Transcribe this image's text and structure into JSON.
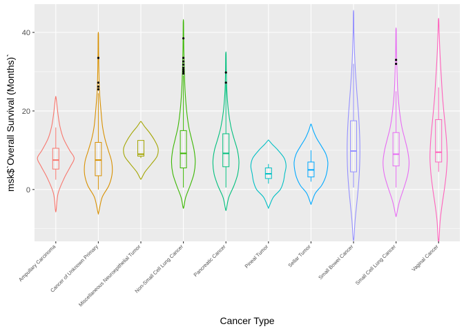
{
  "chart_data": {
    "type": "violin",
    "title": "",
    "xlabel": "Cancer Type",
    "ylabel": "msk$`Overall Survival (Months)`",
    "ylim": [
      -13.2,
      47.2
    ],
    "yticks": [
      0,
      20,
      40
    ],
    "grid": true,
    "legend": "none",
    "series": [
      {
        "name": "Ampullary Carcinoma",
        "color": "#F8766D",
        "violin_range": [
          -5.2,
          23.2
        ],
        "density": [
          [
            -5.2,
            0.02
          ],
          [
            -1,
            0.12
          ],
          [
            3,
            0.45
          ],
          [
            6,
            0.78
          ],
          [
            8,
            0.96
          ],
          [
            10,
            0.72
          ],
          [
            13,
            0.4
          ],
          [
            16,
            0.22
          ],
          [
            19,
            0.12
          ],
          [
            23.2,
            0.02
          ]
        ],
        "box": {
          "q1": 5.2,
          "median": 7.5,
          "q3": 10.5,
          "whisker_low": 2.5,
          "whisker_high": 15.8
        },
        "outliers": []
      },
      {
        "name": "Cancer of Unknown Primary",
        "color": "#D89000",
        "violin_range": [
          -5.8,
          39.5
        ],
        "density": [
          [
            -5.8,
            0.02
          ],
          [
            -2,
            0.2
          ],
          [
            1,
            0.55
          ],
          [
            4,
            0.72
          ],
          [
            7,
            0.7
          ],
          [
            10,
            0.52
          ],
          [
            13,
            0.34
          ],
          [
            16,
            0.22
          ],
          [
            20,
            0.14
          ],
          [
            25,
            0.06
          ],
          [
            30,
            0.03
          ],
          [
            35,
            0.015
          ],
          [
            39.5,
            0.01
          ]
        ],
        "box": {
          "q1": 3.5,
          "median": 7.5,
          "q3": 12.0,
          "whisker_low": 0.0,
          "whisker_high": 24.5
        },
        "outliers": [
          25.5,
          26.2,
          27.2,
          33.5
        ]
      },
      {
        "name": "Miscellaneous Neuroepithelial Tumor",
        "color": "#A3A500",
        "violin_range": [
          2.8,
          17.2
        ],
        "density": [
          [
            2.8,
            0.03
          ],
          [
            4.5,
            0.22
          ],
          [
            6.5,
            0.55
          ],
          [
            8.5,
            0.85
          ],
          [
            10.5,
            0.9
          ],
          [
            12.5,
            0.72
          ],
          [
            14.5,
            0.45
          ],
          [
            16,
            0.2
          ],
          [
            17.2,
            0.03
          ]
        ],
        "box": {
          "q1": 8.5,
          "median": 9.0,
          "q3": 12.5,
          "whisker_low": 8.0,
          "whisker_high": 12.5
        },
        "outliers": []
      },
      {
        "name": "Non-Small Cell Lung Cancer",
        "color": "#39B600",
        "violin_range": [
          -4.5,
          42.5
        ],
        "density": [
          [
            -4.5,
            0.02
          ],
          [
            -2,
            0.12
          ],
          [
            1,
            0.35
          ],
          [
            4,
            0.55
          ],
          [
            7,
            0.62
          ],
          [
            10,
            0.56
          ],
          [
            13,
            0.42
          ],
          [
            16,
            0.28
          ],
          [
            20,
            0.17
          ],
          [
            25,
            0.09
          ],
          [
            30,
            0.05
          ],
          [
            36,
            0.02
          ],
          [
            42.5,
            0.01
          ]
        ],
        "box": {
          "q1": 5.5,
          "median": 9.2,
          "q3": 15.0,
          "whisker_low": 0.5,
          "whisker_high": 29.0
        },
        "outliers": [
          29.5,
          30.0,
          30.5,
          31.0,
          31.8,
          32.6,
          33.5,
          38.5
        ]
      },
      {
        "name": "Pancreatic Cancer",
        "color": "#00BF7D",
        "violin_range": [
          -5.0,
          34.5
        ],
        "density": [
          [
            -5,
            0.02
          ],
          [
            -2,
            0.15
          ],
          [
            1,
            0.42
          ],
          [
            4,
            0.62
          ],
          [
            7,
            0.68
          ],
          [
            10,
            0.6
          ],
          [
            13,
            0.42
          ],
          [
            16,
            0.26
          ],
          [
            20,
            0.13
          ],
          [
            25,
            0.05
          ],
          [
            30,
            0.02
          ],
          [
            34.5,
            0.01
          ]
        ],
        "box": {
          "q1": 5.8,
          "median": 9.2,
          "q3": 14.2,
          "whisker_low": 0.5,
          "whisker_high": 26.8
        },
        "outliers": [
          27.2,
          29.8
        ]
      },
      {
        "name": "Pineal Tumor",
        "color": "#00BFC4",
        "violin_range": [
          -4.5,
          12.5
        ],
        "density": [
          [
            -4.5,
            0.02
          ],
          [
            -2,
            0.25
          ],
          [
            0,
            0.62
          ],
          [
            2,
            0.78
          ],
          [
            4,
            0.85
          ],
          [
            6,
            0.92
          ],
          [
            8,
            0.82
          ],
          [
            10,
            0.5
          ],
          [
            11.5,
            0.2
          ],
          [
            12.5,
            0.02
          ]
        ],
        "box": {
          "q1": 2.8,
          "median": 4.0,
          "q3": 5.5,
          "whisker_low": 1.5,
          "whisker_high": 6.5
        },
        "outliers": []
      },
      {
        "name": "Sellar Tumor",
        "color": "#00A9FF",
        "violin_range": [
          -3.5,
          16.5
        ],
        "density": [
          [
            -3.5,
            0.02
          ],
          [
            -1,
            0.22
          ],
          [
            1,
            0.55
          ],
          [
            3,
            0.75
          ],
          [
            5,
            0.85
          ],
          [
            7,
            0.88
          ],
          [
            9,
            0.78
          ],
          [
            11,
            0.55
          ],
          [
            13,
            0.3
          ],
          [
            15,
            0.12
          ],
          [
            16.5,
            0.02
          ]
        ],
        "box": {
          "q1": 3.2,
          "median": 5.0,
          "q3": 7.0,
          "whisker_low": 2.0,
          "whisker_high": 10.0
        },
        "outliers": []
      },
      {
        "name": "Small Bowel Cancer",
        "color": "#9590FF",
        "violin_range": [
          -12.5,
          45.0
        ],
        "density": [
          [
            -12.5,
            0.02
          ],
          [
            -8,
            0.08
          ],
          [
            -4,
            0.16
          ],
          [
            0,
            0.24
          ],
          [
            4,
            0.3
          ],
          [
            8,
            0.33
          ],
          [
            12,
            0.33
          ],
          [
            16,
            0.3
          ],
          [
            20,
            0.25
          ],
          [
            25,
            0.17
          ],
          [
            30,
            0.1
          ],
          [
            35,
            0.05
          ],
          [
            40,
            0.02
          ],
          [
            45,
            0.01
          ]
        ],
        "box": {
          "q1": 4.5,
          "median": 9.8,
          "q3": 17.5,
          "whisker_low": 0.5,
          "whisker_high": 32.0
        },
        "outliers": []
      },
      {
        "name": "Small Cell Lung Cancer",
        "color": "#E76BF3",
        "violin_range": [
          -6.5,
          40.5
        ],
        "density": [
          [
            -6.5,
            0.02
          ],
          [
            -3,
            0.18
          ],
          [
            1,
            0.45
          ],
          [
            4,
            0.62
          ],
          [
            7,
            0.68
          ],
          [
            10,
            0.6
          ],
          [
            13,
            0.45
          ],
          [
            16,
            0.3
          ],
          [
            20,
            0.18
          ],
          [
            25,
            0.09
          ],
          [
            30,
            0.05
          ],
          [
            35,
            0.02
          ],
          [
            40.5,
            0.01
          ]
        ],
        "box": {
          "q1": 6.0,
          "median": 9.0,
          "q3": 14.5,
          "whisker_low": 0.5,
          "whisker_high": 25.0
        },
        "outliers": [
          32.0,
          33.0
        ]
      },
      {
        "name": "Vaginal Cancer",
        "color": "#FF62BC",
        "violin_range": [
          -12.8,
          43.2
        ],
        "density": [
          [
            -12.8,
            0.02
          ],
          [
            -8,
            0.08
          ],
          [
            -4,
            0.18
          ],
          [
            0,
            0.3
          ],
          [
            4,
            0.4
          ],
          [
            8,
            0.45
          ],
          [
            12,
            0.42
          ],
          [
            16,
            0.35
          ],
          [
            20,
            0.27
          ],
          [
            24,
            0.2
          ],
          [
            28,
            0.15
          ],
          [
            32,
            0.1
          ],
          [
            36,
            0.06
          ],
          [
            40,
            0.03
          ],
          [
            43.2,
            0.01
          ]
        ],
        "box": {
          "q1": 7.0,
          "median": 9.5,
          "q3": 17.8,
          "whisker_low": 4.5,
          "whisker_high": 26.0
        },
        "outliers": []
      }
    ]
  }
}
